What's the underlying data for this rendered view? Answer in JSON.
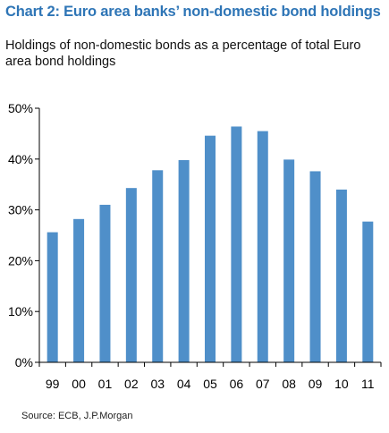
{
  "colors": {
    "title": "#2e75b6",
    "bar": "#4f8fc9",
    "axis": "#000000",
    "text": "#000000"
  },
  "chart_data": {
    "type": "bar",
    "title": "Chart 2: Euro area banks’ non-domestic bond holdings",
    "subtitle": "Holdings of non-domestic bonds as a percentage of total Euro area bond holdings",
    "categories": [
      "99",
      "00",
      "01",
      "02",
      "03",
      "04",
      "05",
      "06",
      "07",
      "08",
      "09",
      "10",
      "11"
    ],
    "values": [
      25.6,
      28.2,
      31.0,
      34.3,
      37.8,
      39.8,
      44.6,
      46.4,
      45.5,
      39.9,
      37.6,
      34.0,
      27.7
    ],
    "ylim": [
      0,
      50
    ],
    "yticks": [
      "0%",
      "10%",
      "20%",
      "30%",
      "40%",
      "50%"
    ],
    "ytick_values": [
      0,
      10,
      20,
      30,
      40,
      50
    ],
    "grid": false,
    "source": "Source: ECB, J.P.Morgan"
  }
}
